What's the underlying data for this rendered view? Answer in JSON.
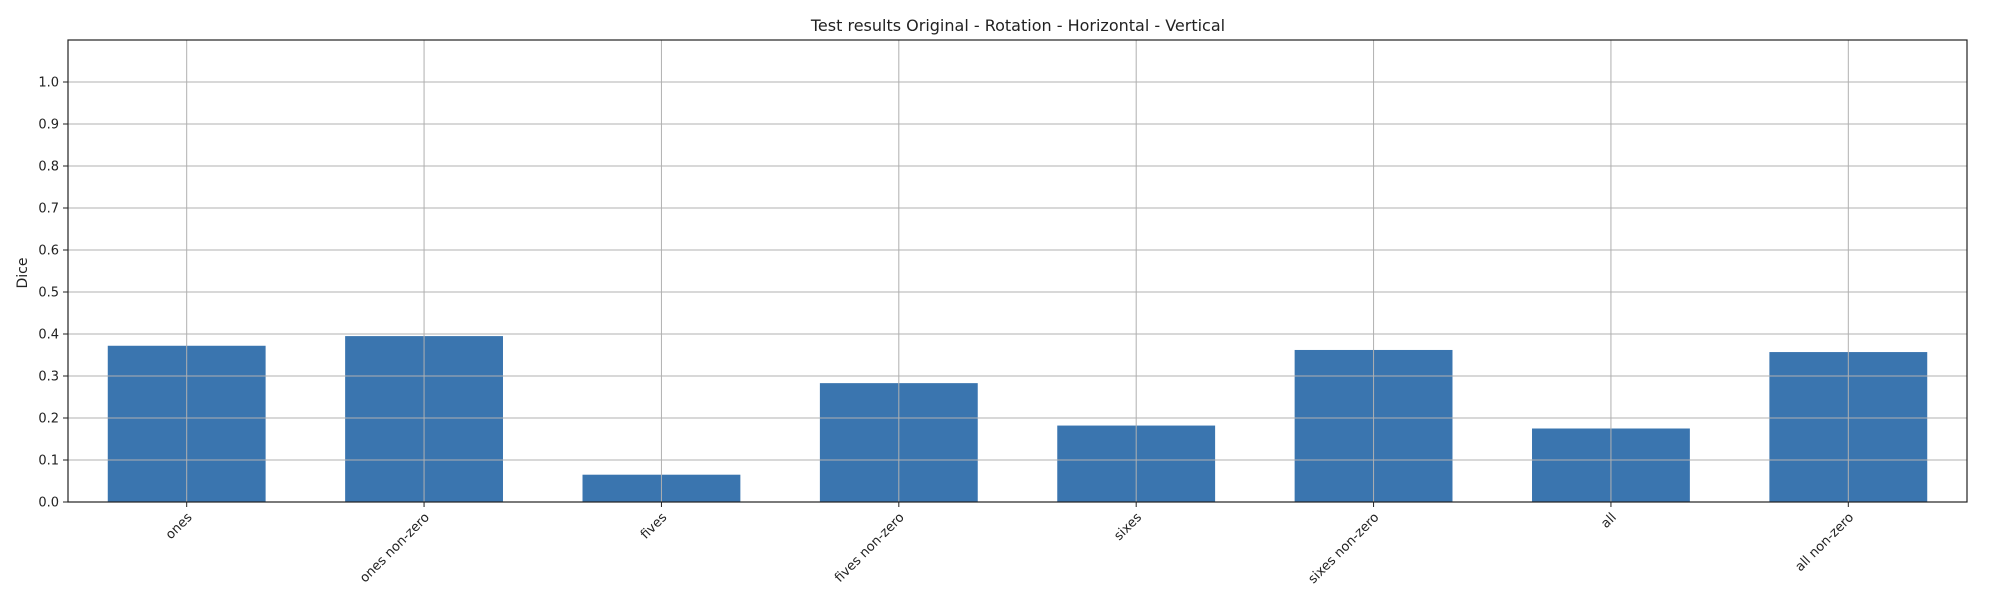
{
  "chart_data": {
    "type": "bar",
    "title": "Test results Original - Rotation - Horizontal - Vertical",
    "xlabel": "",
    "ylabel": "Dice",
    "categories": [
      "ones",
      "ones non-zero",
      "fives",
      "fives non-zero",
      "sixes",
      "sixes non-zero",
      "all",
      "all non-zero"
    ],
    "values": [
      0.372,
      0.395,
      0.065,
      0.283,
      0.182,
      0.362,
      0.175,
      0.357
    ],
    "ylim": [
      0,
      1.1
    ],
    "yticks": [
      "0.0",
      "0.1",
      "0.2",
      "0.3",
      "0.4",
      "0.5",
      "0.6",
      "0.7",
      "0.8",
      "0.9",
      "1.0"
    ],
    "grid": true,
    "bar_color": "#3a75af",
    "grid_color": "#b0b0b0"
  }
}
